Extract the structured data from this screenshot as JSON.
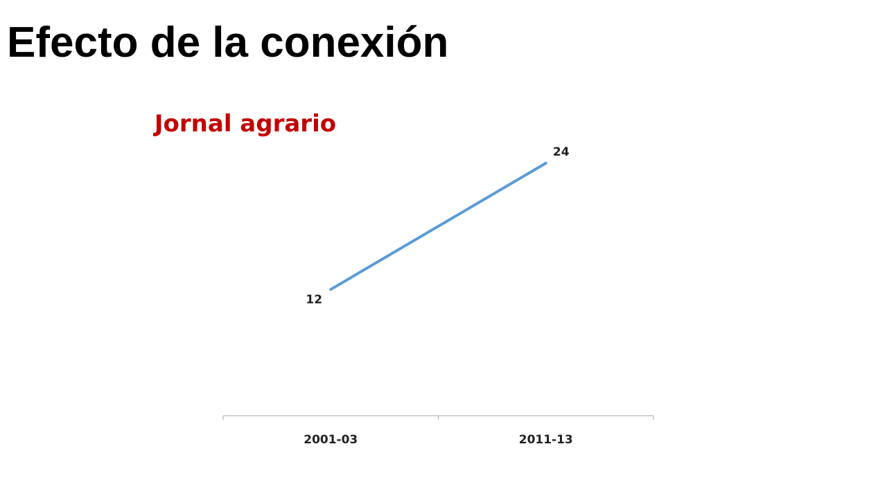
{
  "slide": {
    "title": "Efecto de la conexión"
  },
  "chart_data": {
    "type": "line",
    "title": "Jornal agrario",
    "title_color": "#C00000",
    "categories": [
      "2001-03",
      "2011-13"
    ],
    "series": [
      {
        "values": [
          12,
          24
        ],
        "color": "#5B9BD5"
      }
    ],
    "xlabel": "",
    "ylabel": "",
    "ylim": [
      0,
      28
    ],
    "grid": false,
    "legend": "none",
    "data_labels": true
  }
}
